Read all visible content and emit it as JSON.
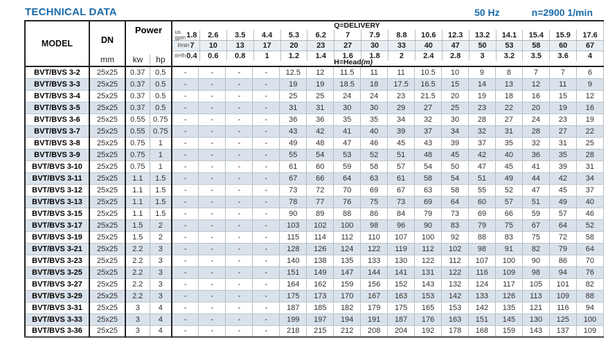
{
  "page": {
    "title": "TECHNICAL DATA",
    "frequency": "50 Hz",
    "speed": "n=2900 1/min"
  },
  "colors": {
    "accent_blue": "#1b6aa8",
    "row_stripe": "#d9e2ea"
  },
  "table": {
    "headers": {
      "model": "MODEL",
      "dn": "DN",
      "dn_unit": "mm",
      "power": "Power",
      "power_kw": "kw",
      "power_hp": "hp",
      "delivery_title": "Q=DELIVERY",
      "head_label": "H=Head",
      "head_unit": "(m)",
      "unit_rows": [
        {
          "label": "us\ngpm",
          "values": [
            "1.8",
            "2.6",
            "3.5",
            "4.4",
            "5.3",
            "6.2",
            "7",
            "7.9",
            "8.8",
            "10.6",
            "12.3",
            "13.2",
            "14.1",
            "15.4",
            "15.9",
            "17.6"
          ]
        },
        {
          "label": "l/min",
          "values": [
            "7",
            "10",
            "13",
            "17",
            "20",
            "23",
            "27",
            "30",
            "33",
            "40",
            "47",
            "50",
            "53",
            "58",
            "60",
            "67"
          ]
        },
        {
          "label": "m³/h",
          "values": [
            "0.4",
            "0.6",
            "0.8",
            "1",
            "1.2",
            "1.4",
            "1.6",
            "1.8",
            "2",
            "2.4",
            "2.8",
            "3",
            "3.2",
            "3.5",
            "3.6",
            "4"
          ]
        }
      ]
    },
    "rows": [
      {
        "model": "BVT/BVS 3-2",
        "dn": "25x25",
        "kw": "0.37",
        "hp": "0.5",
        "head": [
          "-",
          "-",
          "-",
          "-",
          "12.5",
          "12",
          "11.5",
          "11",
          "11",
          "10.5",
          "10",
          "9",
          "8",
          "7",
          "7",
          "6"
        ]
      },
      {
        "model": "BVT/BVS 3-3",
        "dn": "25x25",
        "kw": "0.37",
        "hp": "0.5",
        "head": [
          "-",
          "-",
          "-",
          "-",
          "19",
          "19",
          "18.5",
          "18",
          "17.5",
          "16.5",
          "15",
          "14",
          "13",
          "12",
          "11",
          "9"
        ]
      },
      {
        "model": "BVT/BVS 3-4",
        "dn": "25x25",
        "kw": "0.37",
        "hp": "0.5",
        "head": [
          "-",
          "-",
          "-",
          "-",
          "25",
          "25",
          "24",
          "24",
          "23",
          "21.5",
          "20",
          "19",
          "18",
          "16",
          "15",
          "12"
        ]
      },
      {
        "model": "BVT/BVS 3-5",
        "dn": "25x25",
        "kw": "0.37",
        "hp": "0.5",
        "head": [
          "-",
          "-",
          "-",
          "-",
          "31",
          "31",
          "30",
          "30",
          "29",
          "27",
          "25",
          "23",
          "22",
          "20",
          "19",
          "16"
        ]
      },
      {
        "model": "BVT/BVS 3-6",
        "dn": "25x25",
        "kw": "0.55",
        "hp": "0.75",
        "head": [
          "-",
          "-",
          "-",
          "-",
          "36",
          "36",
          "35",
          "35",
          "34",
          "32",
          "30",
          "28",
          "27",
          "24",
          "23",
          "19"
        ]
      },
      {
        "model": "BVT/BVS 3-7",
        "dn": "25x25",
        "kw": "0.55",
        "hp": "0.75",
        "head": [
          "-",
          "-",
          "-",
          "-",
          "43",
          "42",
          "41",
          "40",
          "39",
          "37",
          "34",
          "32",
          "31",
          "28",
          "27",
          "22"
        ]
      },
      {
        "model": "BVT/BVS 3-8",
        "dn": "25x25",
        "kw": "0.75",
        "hp": "1",
        "head": [
          "-",
          "-",
          "-",
          "-",
          "49",
          "48",
          "47",
          "46",
          "45",
          "43",
          "39",
          "37",
          "35",
          "32",
          "31",
          "25"
        ]
      },
      {
        "model": "BVT/BVS 3-9",
        "dn": "25x25",
        "kw": "0.75",
        "hp": "1",
        "head": [
          "-",
          "-",
          "-",
          "-",
          "55",
          "54",
          "53",
          "52",
          "51",
          "48",
          "45",
          "42",
          "40",
          "36",
          "35",
          "28"
        ]
      },
      {
        "model": "BVT/BVS 3-10",
        "dn": "25x25",
        "kw": "0.75",
        "hp": "1",
        "head": [
          "-",
          "-",
          "-",
          "-",
          "61",
          "60",
          "59",
          "58",
          "57",
          "54",
          "50",
          "47",
          "45",
          "41",
          "39",
          "31"
        ]
      },
      {
        "model": "BVT/BVS 3-11",
        "dn": "25x25",
        "kw": "1.1",
        "hp": "1.5",
        "head": [
          "-",
          "-",
          "-",
          "-",
          "67",
          "66",
          "64",
          "63",
          "61",
          "58",
          "54",
          "51",
          "49",
          "44",
          "42",
          "34"
        ]
      },
      {
        "model": "BVT/BVS 3-12",
        "dn": "25x25",
        "kw": "1.1",
        "hp": "1.5",
        "head": [
          "-",
          "-",
          "-",
          "-",
          "73",
          "72",
          "70",
          "69",
          "67",
          "63",
          "58",
          "55",
          "52",
          "47",
          "45",
          "37"
        ]
      },
      {
        "model": "BVT/BVS 3-13",
        "dn": "25x25",
        "kw": "1.1",
        "hp": "1.5",
        "head": [
          "-",
          "-",
          "-",
          "-",
          "78",
          "77",
          "76",
          "75",
          "73",
          "69",
          "64",
          "60",
          "57",
          "51",
          "49",
          "40"
        ]
      },
      {
        "model": "BVT/BVS 3-15",
        "dn": "25x25",
        "kw": "1.1",
        "hp": "1.5",
        "head": [
          "-",
          "-",
          "-",
          "-",
          "90",
          "89",
          "88",
          "86",
          "84",
          "79",
          "73",
          "69",
          "66",
          "59",
          "57",
          "46"
        ]
      },
      {
        "model": "BVT/BVS 3-17",
        "dn": "25x25",
        "kw": "1.5",
        "hp": "2",
        "head": [
          "-",
          "-",
          "-",
          "-",
          "103",
          "102",
          "100",
          "98",
          "96",
          "90",
          "83",
          "79",
          "75",
          "67",
          "64",
          "52"
        ]
      },
      {
        "model": "BVT/BVS 3-19",
        "dn": "25x25",
        "kw": "1.5",
        "hp": "2",
        "head": [
          "-",
          "-",
          "-",
          "-",
          "115",
          "114",
          "112",
          "110",
          "107",
          "100",
          "92",
          "88",
          "83",
          "75",
          "72",
          "58"
        ]
      },
      {
        "model": "BVT/BVS 3-21",
        "dn": "25x25",
        "kw": "2.2",
        "hp": "3",
        "head": [
          "-",
          "-",
          "-",
          "-",
          "128",
          "126",
          "124",
          "122",
          "119",
          "112",
          "102",
          "98",
          "91",
          "82",
          "79",
          "64"
        ]
      },
      {
        "model": "BVT/BVS 3-23",
        "dn": "25x25",
        "kw": "2.2",
        "hp": "3",
        "head": [
          "-",
          "-",
          "-",
          "-",
          "140",
          "138",
          "135",
          "133",
          "130",
          "122",
          "112",
          "107",
          "100",
          "90",
          "86",
          "70"
        ]
      },
      {
        "model": "BVT/BVS 3-25",
        "dn": "25x25",
        "kw": "2.2",
        "hp": "3",
        "head": [
          "-",
          "-",
          "-",
          "-",
          "151",
          "149",
          "147",
          "144",
          "141",
          "131",
          "122",
          "116",
          "109",
          "98",
          "94",
          "76"
        ]
      },
      {
        "model": "BVT/BVS 3-27",
        "dn": "25x25",
        "kw": "2.2",
        "hp": "3",
        "head": [
          "-",
          "-",
          "-",
          "-",
          "164",
          "162",
          "159",
          "156",
          "152",
          "143",
          "132",
          "124",
          "117",
          "105",
          "101",
          "82"
        ]
      },
      {
        "model": "BVT/BVS 3-29",
        "dn": "25x25",
        "kw": "2.2",
        "hp": "3",
        "head": [
          "-",
          "-",
          "-",
          "-",
          "175",
          "173",
          "170",
          "167",
          "163",
          "153",
          "142",
          "133",
          "126",
          "113",
          "109",
          "88"
        ]
      },
      {
        "model": "BVT/BVS 3-31",
        "dn": "25x25",
        "kw": "3",
        "hp": "4",
        "head": [
          "-",
          "-",
          "-",
          "-",
          "187",
          "185",
          "182",
          "179",
          "175",
          "165",
          "153",
          "142",
          "135",
          "121",
          "116",
          "94"
        ]
      },
      {
        "model": "BVT/BVS 3-33",
        "dn": "25x25",
        "kw": "3",
        "hp": "4",
        "head": [
          "-",
          "-",
          "-",
          "-",
          "199",
          "197",
          "194",
          "191",
          "187",
          "176",
          "163",
          "151",
          "145",
          "130",
          "125",
          "100"
        ]
      },
      {
        "model": "BVT/BVS 3-36",
        "dn": "25x25",
        "kw": "3",
        "hp": "4",
        "head": [
          "-",
          "-",
          "-",
          "-",
          "218",
          "215",
          "212",
          "208",
          "204",
          "192",
          "178",
          "168",
          "159",
          "143",
          "137",
          "109"
        ]
      }
    ]
  }
}
